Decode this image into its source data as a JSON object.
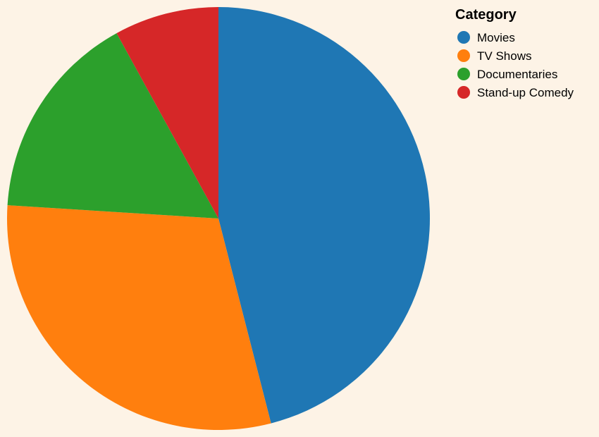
{
  "chart_data": {
    "type": "pie",
    "legend_title": "Category",
    "legend_position": "top-right",
    "categories": [
      "Movies",
      "TV Shows",
      "Documentaries",
      "Stand-up Comedy"
    ],
    "values": [
      46,
      30,
      16,
      8
    ],
    "colors": [
      "#1f77b4",
      "#ff7f0e",
      "#2ca02c",
      "#d62728"
    ]
  }
}
